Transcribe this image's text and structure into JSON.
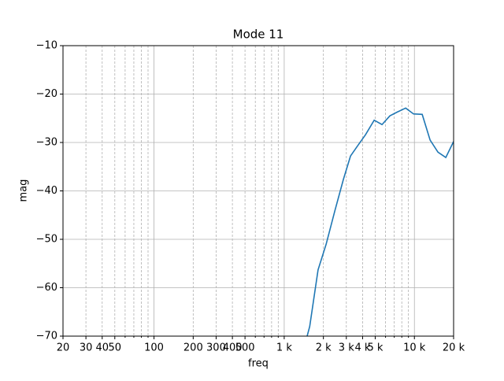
{
  "chart_data": {
    "type": "line",
    "title": "Mode 11",
    "xlabel": "freq",
    "ylabel": "mag",
    "xscale": "log",
    "grid": true,
    "x": [
      1500,
      1570,
      1820,
      2100,
      2450,
      2850,
      3230,
      3660,
      4210,
      4910,
      5640,
      6480,
      7400,
      8570,
      9850,
      11480,
      13200,
      15170,
      17420,
      20000
    ],
    "series": [
      {
        "color": "#1f77b4",
        "values": [
          -70,
          -68.0,
          -56.3,
          -51.0,
          -44.1,
          -37.6,
          -32.8,
          -30.7,
          -28.4,
          -25.4,
          -26.3,
          -24.5,
          -23.7,
          -22.9,
          -24.1,
          -24.2,
          -29.5,
          -32.0,
          -33.1,
          -29.8
        ]
      }
    ],
    "xlim": [
      20,
      20000
    ],
    "ylim": [
      -70,
      -10
    ],
    "xticks": [
      20,
      30,
      40,
      50,
      100,
      200,
      300,
      400,
      500,
      {
        "value": 1000,
        "label": "1 k"
      },
      {
        "value": 2000,
        "label": "2 k"
      },
      {
        "value": 3000,
        "label": "3 k"
      },
      {
        "value": 4000,
        "label": "4 k"
      },
      {
        "value": 5000,
        "label": "5 k"
      },
      {
        "value": 10000,
        "label": "10 k"
      },
      {
        "value": 20000,
        "label": "20 k"
      }
    ],
    "xminor": [
      60,
      70,
      80,
      90,
      600,
      700,
      800,
      900,
      6000,
      7000,
      8000,
      9000
    ],
    "yticks": [
      {
        "value": -70,
        "label": "−70"
      },
      {
        "value": -60,
        "label": "−60"
      },
      {
        "value": -50,
        "label": "−50"
      },
      {
        "value": -40,
        "label": "−40"
      },
      {
        "value": -30,
        "label": "−30"
      },
      {
        "value": -20,
        "label": "−20"
      },
      {
        "value": -10,
        "label": "−10"
      }
    ]
  }
}
